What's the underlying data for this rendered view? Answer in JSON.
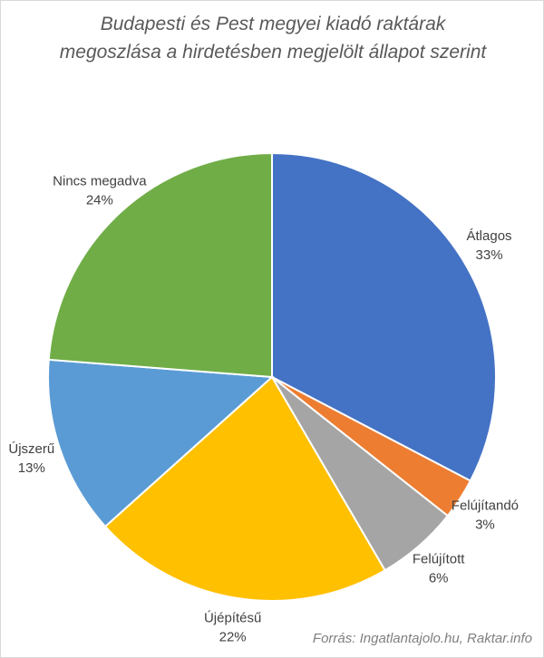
{
  "chart_data": {
    "type": "pie",
    "title": "Budapesti és Pest megyei kiadó raktárak megoszlása a hirdetésben megjelölt állapot szerint",
    "categories": [
      "Átlagos",
      "Felújítandó",
      "Felújított",
      "Újépítésű",
      "Újszerű",
      "Nincs megadva"
    ],
    "values": [
      33,
      3,
      6,
      22,
      13,
      24
    ],
    "value_labels": [
      "33%",
      "3%",
      "6%",
      "22%",
      "13%",
      "24%"
    ],
    "colors": [
      "#4472c4",
      "#ed7d31",
      "#a5a5a5",
      "#ffc000",
      "#5b9bd5",
      "#70ad47"
    ],
    "source": "Forrás: Ingatlantajolo.hu, Raktar.info"
  }
}
